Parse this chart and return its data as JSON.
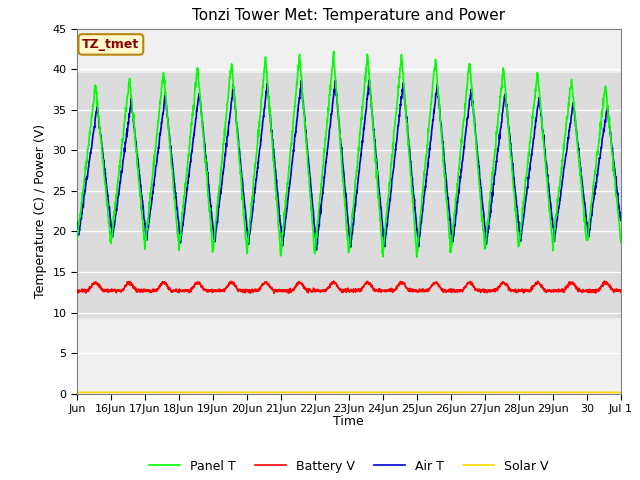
{
  "title": "Tonzi Tower Met: Temperature and Power",
  "ylabel": "Temperature (C) / Power (V)",
  "xlabel": "Time",
  "ylim": [
    0,
    45
  ],
  "yticks": [
    0,
    5,
    10,
    15,
    20,
    25,
    30,
    35,
    40,
    45
  ],
  "annotation_text": "TZ_tmet",
  "annotation_color": "#8B0000",
  "annotation_bg": "#FFFACD",
  "annotation_border": "#B8860B",
  "panel_color": "#00FF00",
  "battery_color": "#FF0000",
  "air_color": "#0000CD",
  "solar_color": "#FFD700",
  "bg_band_low": 9.5,
  "bg_band_high": 39.5,
  "bg_color": "#DCDCDC",
  "axes_bg": "#F0F0F0",
  "grid_color": "#FFFFFF",
  "title_fontsize": 11,
  "label_fontsize": 9,
  "tick_fontsize": 8,
  "legend_fontsize": 9,
  "tick_labels": [
    "Jun",
    "16Jun",
    "17Jun",
    "18Jun",
    "19Jun",
    "20Jun",
    "21Jun",
    "22Jun",
    "23Jun",
    "24Jun",
    "25Jun",
    "26Jun",
    "27Jun",
    "28Jun",
    "29Jun",
    "30",
    "Jul 1"
  ]
}
